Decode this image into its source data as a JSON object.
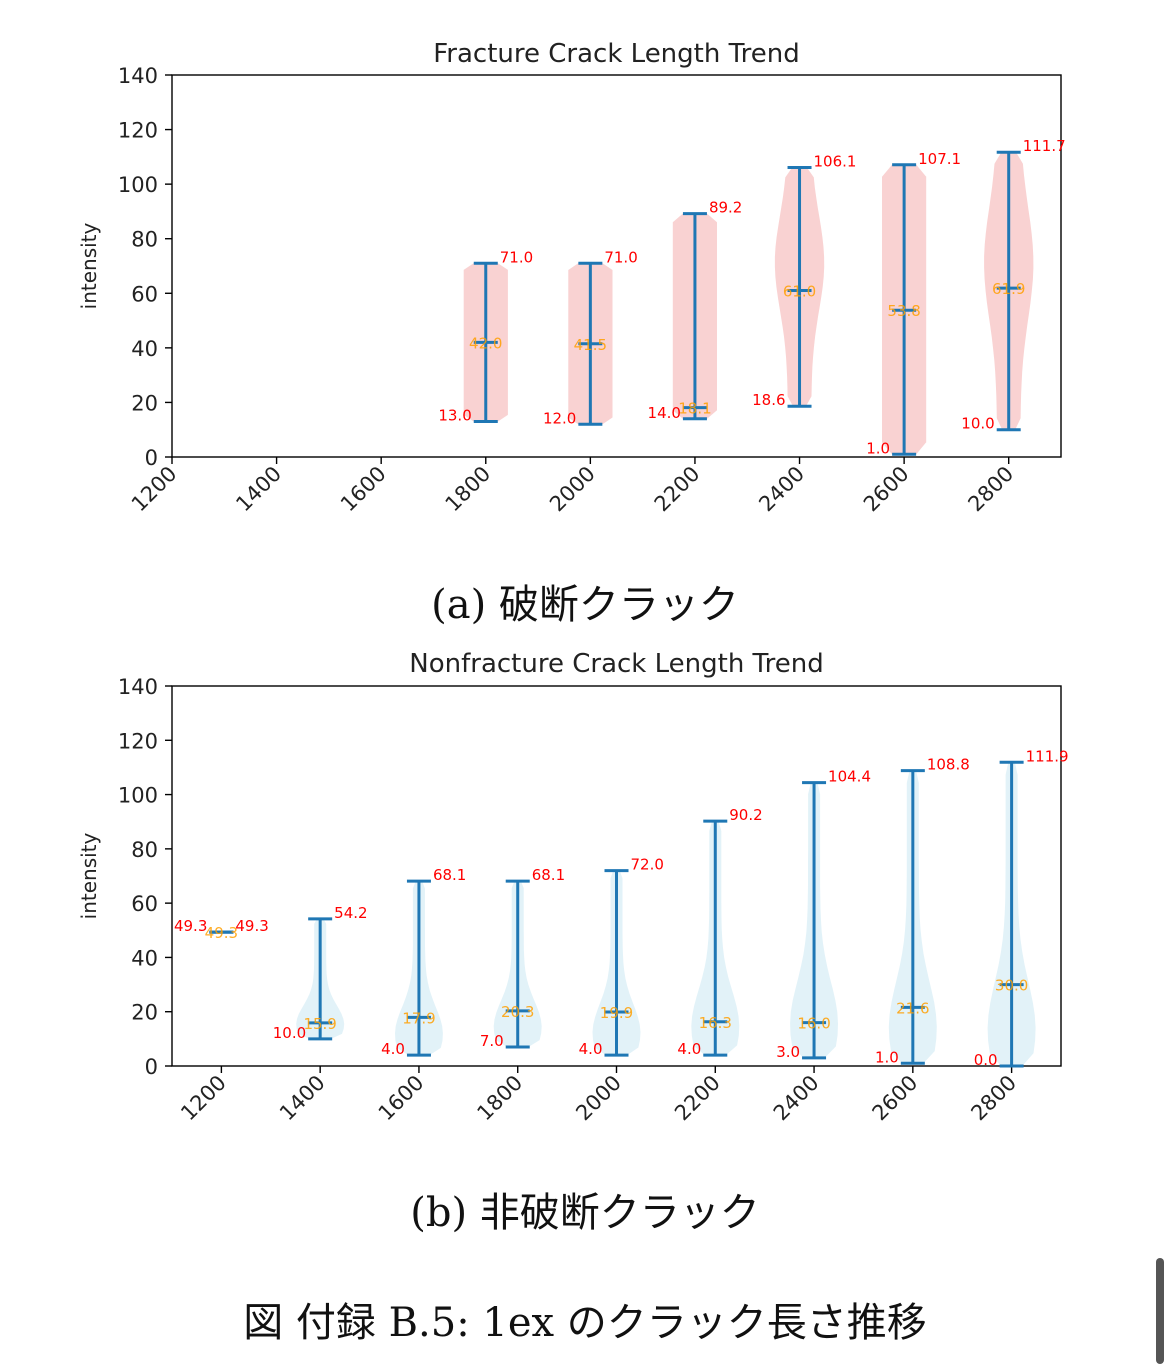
{
  "colors": {
    "whisker": "#1f77b4",
    "median_label": "#ff9f00",
    "extreme_label": "#ff0000",
    "violin_a": "#f4a6a6",
    "violin_b": "#bfe3f0",
    "axis": "#000000"
  },
  "chart_data": [
    {
      "type": "violin",
      "title": "Fracture Crack Length Trend",
      "xlabel": "",
      "ylabel": "intensity",
      "xlim": [
        1200,
        2900
      ],
      "ylim": [
        0,
        140
      ],
      "x_ticks": [
        "1200",
        "1400",
        "1600",
        "1800",
        "2000",
        "2200",
        "2400",
        "2600",
        "2800"
      ],
      "y_ticks": [
        "0",
        "20",
        "40",
        "60",
        "80",
        "100",
        "120",
        "140"
      ],
      "grid": false,
      "series": [
        {
          "x": 1800,
          "min": 13.0,
          "median": 42.0,
          "max": 71.0,
          "min_label": "13.0",
          "median_label": "42.0",
          "max_label": "71.0"
        },
        {
          "x": 2000,
          "min": 12.0,
          "median": 41.5,
          "max": 71.0,
          "min_label": "12.0",
          "median_label": "41.5",
          "max_label": "71.0"
        },
        {
          "x": 2200,
          "min": 14.0,
          "median": 18.1,
          "max": 89.2,
          "min_label": "14.0",
          "median_label": "18.1",
          "max_label": "89.2"
        },
        {
          "x": 2400,
          "min": 18.6,
          "median": 61.0,
          "max": 106.1,
          "min_label": "18.6",
          "median_label": "61.0",
          "max_label": "106.1"
        },
        {
          "x": 2600,
          "min": 1.0,
          "median": 53.8,
          "max": 107.1,
          "min_label": "1.0",
          "median_label": "53.8",
          "max_label": "107.1"
        },
        {
          "x": 2800,
          "min": 10.0,
          "median": 61.9,
          "max": 111.7,
          "min_label": "10.0",
          "median_label": "61.9",
          "max_label": "111.7"
        }
      ]
    },
    {
      "type": "violin",
      "title": "Nonfracture Crack Length Trend",
      "xlabel": "",
      "ylabel": "intensity",
      "xlim": [
        1100,
        2900
      ],
      "ylim": [
        0,
        140
      ],
      "x_ticks": [
        "1200",
        "1400",
        "1600",
        "1800",
        "2000",
        "2200",
        "2400",
        "2600",
        "2800"
      ],
      "y_ticks": [
        "0",
        "20",
        "40",
        "60",
        "80",
        "100",
        "120",
        "140"
      ],
      "grid": false,
      "series": [
        {
          "x": 1200,
          "min": 49.3,
          "median": 49.3,
          "max": 49.3,
          "min_label": "49.3",
          "median_label": "49.3",
          "max_label": "49.3"
        },
        {
          "x": 1400,
          "min": 10.0,
          "median": 15.9,
          "max": 54.2,
          "min_label": "10.0",
          "median_label": "15.9",
          "max_label": "54.2"
        },
        {
          "x": 1600,
          "min": 4.0,
          "median": 17.9,
          "max": 68.1,
          "min_label": "4.0",
          "median_label": "17.9",
          "max_label": "68.1"
        },
        {
          "x": 1800,
          "min": 7.0,
          "median": 20.3,
          "max": 68.1,
          "min_label": "7.0",
          "median_label": "20.3",
          "max_label": "68.1"
        },
        {
          "x": 2000,
          "min": 4.0,
          "median": 19.9,
          "max": 72.0,
          "min_label": "4.0",
          "median_label": "19.9",
          "max_label": "72.0"
        },
        {
          "x": 2200,
          "min": 4.0,
          "median": 16.3,
          "max": 90.2,
          "min_label": "4.0",
          "median_label": "16.3",
          "max_label": "90.2"
        },
        {
          "x": 2400,
          "min": 3.0,
          "median": 16.0,
          "max": 104.4,
          "min_label": "3.0",
          "median_label": "16.0",
          "max_label": "104.4"
        },
        {
          "x": 2600,
          "min": 1.0,
          "median": 21.6,
          "max": 108.8,
          "min_label": "1.0",
          "median_label": "21.6",
          "max_label": "108.8"
        },
        {
          "x": 2800,
          "min": 0.0,
          "median": 30.0,
          "max": 111.9,
          "min_label": "0.0",
          "median_label": "30.0",
          "max_label": "111.9"
        }
      ]
    }
  ],
  "captions": {
    "a": "(a) 破断クラック",
    "b": "(b) 非破断クラック",
    "figure": "図 付録 B.5: 1ex のクラック長さ推移"
  }
}
